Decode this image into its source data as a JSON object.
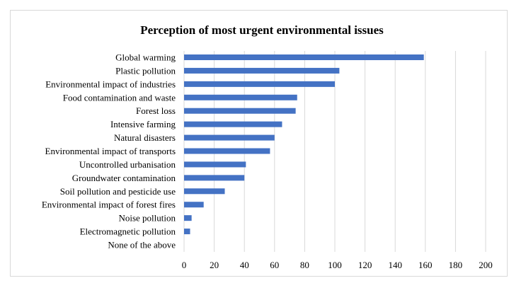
{
  "chart_data": {
    "type": "bar",
    "orientation": "horizontal",
    "title": "Perception of most urgent environmental issues",
    "xlabel": "",
    "ylabel": "",
    "categories": [
      "Global warming",
      "Plastic pollution",
      "Environmental impact of industries",
      "Food contamination and waste",
      "Forest loss",
      "Intensive farming",
      "Natural disasters",
      "Environmental impact of transports",
      "Uncontrolled urbanisation",
      "Groundwater contamination",
      "Soil pollution and pesticide use",
      "Environmental impact of forest fires",
      "Noise pollution",
      "Electromagnetic pollution",
      "None of the above"
    ],
    "values": [
      159,
      103,
      100,
      75,
      74,
      65,
      60,
      57,
      41,
      40,
      27,
      13,
      5,
      4,
      0
    ],
    "xlim": [
      0,
      200
    ],
    "xticks": [
      "0",
      "20",
      "40",
      "60",
      "80",
      "100",
      "120",
      "140",
      "160",
      "180",
      "200"
    ],
    "grid": "vertical",
    "legend": "none",
    "bar_color": "#4472c4",
    "grid_color": "#d9d9d9"
  }
}
